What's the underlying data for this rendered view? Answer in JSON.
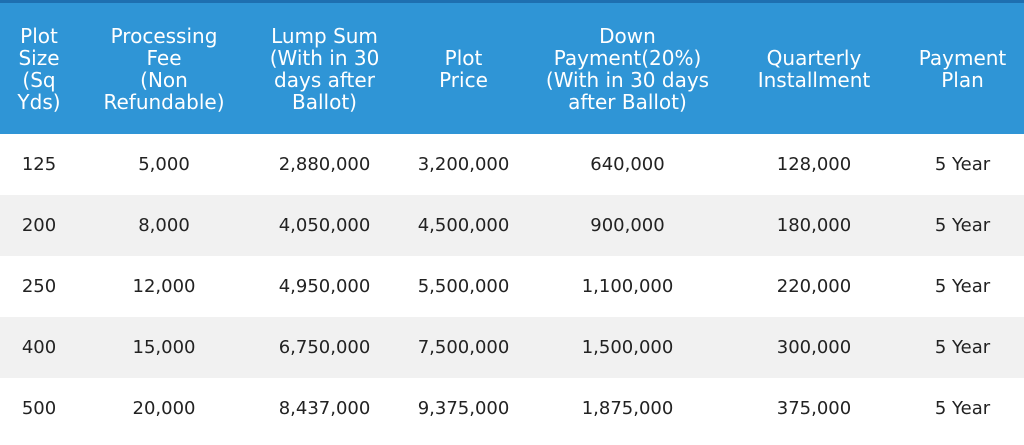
{
  "table": {
    "headers": [
      "Plot\nSize\n(Sq\nYds)",
      "Processing\nFee\n(Non\nRefundable)",
      "Lump Sum\n(With in 30\ndays after\nBallot)",
      "Plot\nPrice",
      "Down\nPayment(20%)\n(With in 30 days\nafter Ballot)",
      "Quarterly\nInstallment",
      "Payment\nPlan"
    ],
    "rows": [
      [
        "125",
        "5,000",
        "2,880,000",
        "3,200,000",
        "640,000",
        "128,000",
        "5 Year"
      ],
      [
        "200",
        "8,000",
        "4,050,000",
        "4,500,000",
        "900,000",
        "180,000",
        "5 Year"
      ],
      [
        "250",
        "12,000",
        "4,950,000",
        "5,500,000",
        "1,100,000",
        "220,000",
        "5 Year"
      ],
      [
        "400",
        "15,000",
        "6,750,000",
        "7,500,000",
        "1,500,000",
        "300,000",
        "5 Year"
      ],
      [
        "500",
        "20,000",
        "8,437,000",
        "9,375,000",
        "1,875,000",
        "375,000",
        "5 Year"
      ]
    ]
  },
  "colors": {
    "header_bg": "#2f95d6",
    "header_text": "#ffffff",
    "row_alt_bg": "#f1f1f1"
  }
}
